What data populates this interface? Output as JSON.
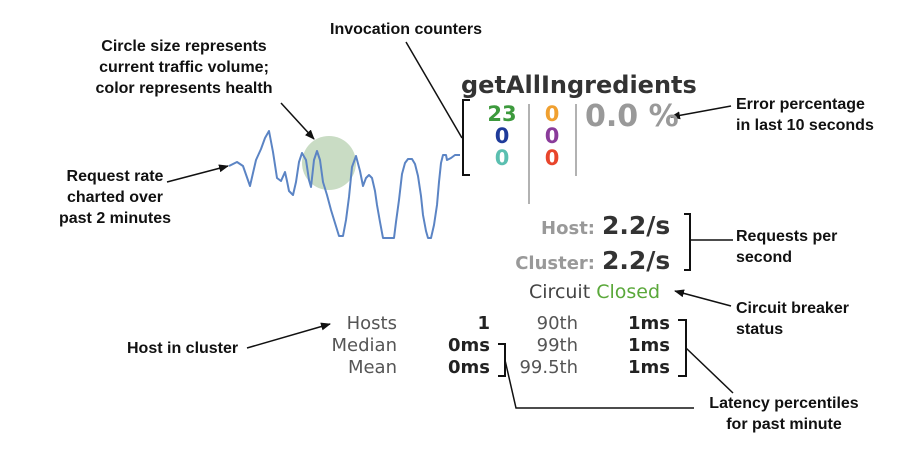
{
  "annotations": {
    "circle": [
      "Circle size represents",
      "current traffic volume;",
      "color represents health"
    ],
    "counters": "Invocation counters",
    "request_rate": [
      "Request rate",
      "charted over",
      "past 2 minutes"
    ],
    "error_pct": [
      "Error percentage",
      "in last 10 seconds"
    ],
    "rps": [
      "Requests per",
      "second"
    ],
    "breaker": [
      "Circuit breaker",
      "status"
    ],
    "hosts": "Host in cluster",
    "latency": [
      "Latency percentiles",
      "for past minute"
    ]
  },
  "command": {
    "name": "getAllIngredients",
    "counters": {
      "col1": [
        "23",
        "0",
        "0"
      ],
      "col2": [
        "0",
        "0",
        "0"
      ]
    },
    "counter_colors": {
      "col1": [
        "#3d9a3d",
        "#1f3b9a",
        "#5bbfb0"
      ],
      "col2": [
        "#f0a030",
        "#8a3b9a",
        "#e8452c"
      ]
    },
    "error_percent": "0.0 %",
    "host_label": "Host:",
    "host_rate": "2.2/s",
    "cluster_label": "Cluster:",
    "cluster_rate": "2.2/s",
    "circuit_label": "Circuit",
    "circuit_status": "Closed",
    "latency": {
      "left_labels": [
        "Hosts",
        "Median",
        "Mean"
      ],
      "left_values": [
        "1",
        "0ms",
        "0ms"
      ],
      "right_labels": [
        "90th",
        "99th",
        "99.5th"
      ],
      "right_values": [
        "1ms",
        "1ms",
        "1ms"
      ]
    }
  },
  "colors": {
    "sparkline": "#5b84c4",
    "health_circle": "#c9dcc4",
    "closed": "#5aa83a"
  }
}
